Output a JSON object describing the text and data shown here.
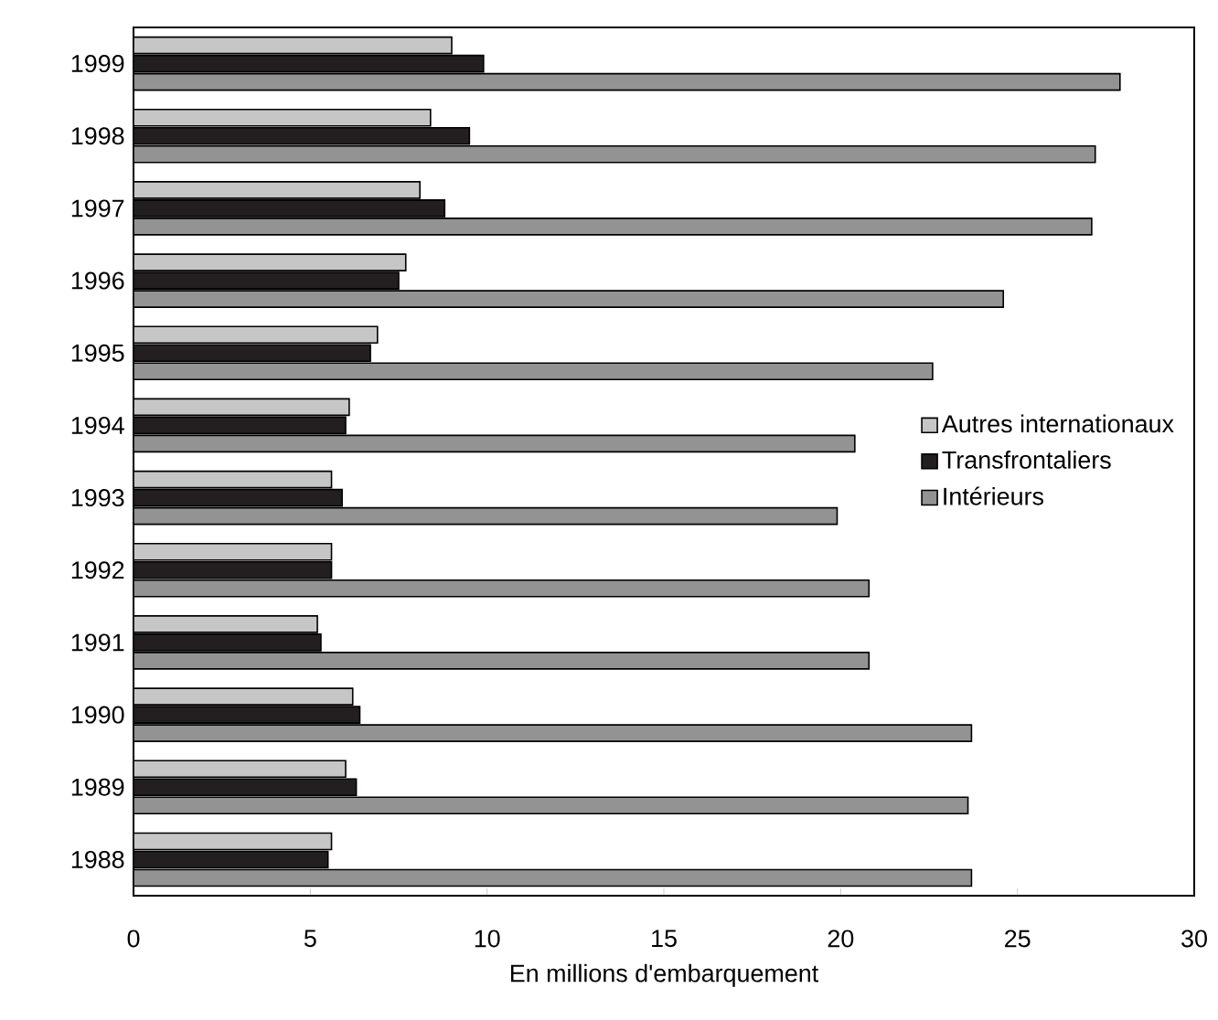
{
  "chart_data": {
    "type": "bar",
    "orientation": "horizontal",
    "categories": [
      "1999",
      "1998",
      "1997",
      "1996",
      "1995",
      "1994",
      "1993",
      "1992",
      "1991",
      "1990",
      "1989",
      "1988"
    ],
    "series": [
      {
        "name": "Autres internationaux",
        "color": "#c6c6c6",
        "values": [
          9.0,
          8.4,
          8.1,
          7.7,
          6.9,
          6.1,
          5.6,
          5.6,
          5.2,
          6.2,
          6.0,
          5.6
        ]
      },
      {
        "name": "Transfrontaliers",
        "color": "#231f20",
        "values": [
          9.9,
          9.5,
          8.8,
          7.5,
          6.7,
          6.0,
          5.9,
          5.6,
          5.3,
          6.4,
          6.3,
          5.5
        ]
      },
      {
        "name": "Intérieurs",
        "color": "#939393",
        "values": [
          27.9,
          27.2,
          27.1,
          24.6,
          22.6,
          20.4,
          19.9,
          20.8,
          20.8,
          23.7,
          23.6,
          23.7
        ]
      }
    ],
    "xlabel": "En millions d'embarquement",
    "xlim": [
      0,
      30
    ],
    "xticks": [
      0,
      5,
      10,
      15,
      20,
      25,
      30
    ],
    "legend": "right"
  }
}
